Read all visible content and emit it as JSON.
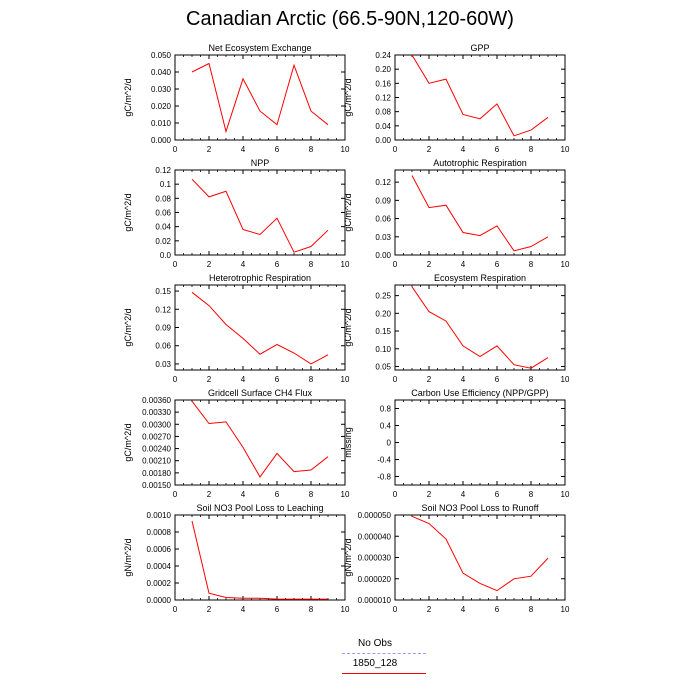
{
  "page": {
    "title": "Canadian Arctic (66.5-90N,120-60W)"
  },
  "legend": {
    "items": [
      {
        "label": "No Obs",
        "color": "#9999ff",
        "style": "dashed"
      },
      {
        "label": "1850_128",
        "color": "#ff0000",
        "style": "solid"
      }
    ]
  },
  "chart_data": [
    {
      "type": "line",
      "title": "Net Ecosystem Exchange",
      "ylabel": "gC/m^2/d",
      "xlim": [
        0,
        10
      ],
      "ylim": [
        0.0,
        0.05
      ],
      "xticks": [
        "0",
        "2",
        "4",
        "6",
        "8",
        "10"
      ],
      "yticks": [
        "0.000",
        "0.010",
        "0.020",
        "0.030",
        "0.040",
        "0.050"
      ],
      "x": [
        1,
        2,
        3,
        4,
        5,
        6,
        7,
        8,
        9
      ],
      "series": [
        {
          "name": "1850_128",
          "color": "#ff0000",
          "values": [
            0.04,
            0.045,
            0.005,
            0.036,
            0.017,
            0.009,
            0.044,
            0.017,
            0.009
          ]
        }
      ]
    },
    {
      "type": "line",
      "title": "GPP",
      "ylabel": "gC/m^2/d",
      "xlim": [
        0,
        10
      ],
      "ylim": [
        0.0,
        0.24
      ],
      "xticks": [
        "0",
        "2",
        "4",
        "6",
        "8",
        "10"
      ],
      "yticks": [
        "0.00",
        "0.04",
        "0.08",
        "0.12",
        "0.16",
        "0.20",
        "0.24"
      ],
      "x": [
        1,
        2,
        3,
        4,
        5,
        6,
        7,
        8,
        9
      ],
      "series": [
        {
          "name": "1850_128",
          "color": "#ff0000",
          "values": [
            0.24,
            0.16,
            0.172,
            0.072,
            0.06,
            0.102,
            0.012,
            0.028,
            0.064
          ]
        }
      ]
    },
    {
      "type": "line",
      "title": "NPP",
      "ylabel": "gC/m^2/d",
      "xlim": [
        0,
        10
      ],
      "ylim": [
        0.0,
        0.12
      ],
      "xticks": [
        "0",
        "2",
        "4",
        "6",
        "8",
        "10"
      ],
      "yticks": [
        "0.0",
        "0.02",
        "0.04",
        "0.06",
        "0.08",
        "0.1",
        "0.12"
      ],
      "x": [
        1,
        2,
        3,
        4,
        5,
        6,
        7,
        8,
        9
      ],
      "series": [
        {
          "name": "1850_128",
          "color": "#ff0000",
          "values": [
            0.107,
            0.082,
            0.09,
            0.036,
            0.029,
            0.052,
            0.004,
            0.012,
            0.035
          ]
        }
      ]
    },
    {
      "type": "line",
      "title": "Autotrophic Respiration",
      "ylabel": "gC/m^2/d",
      "xlim": [
        0,
        10
      ],
      "ylim": [
        0.0,
        0.14
      ],
      "xticks": [
        "0",
        "2",
        "4",
        "6",
        "8",
        "10"
      ],
      "yticks": [
        "0.00",
        "0.03",
        "0.06",
        "0.09",
        "0.12"
      ],
      "ytick_values": [
        0.0,
        0.03,
        0.06,
        0.09,
        0.12
      ],
      "x": [
        1,
        2,
        3,
        4,
        5,
        6,
        7,
        8,
        9
      ],
      "series": [
        {
          "name": "1850_128",
          "color": "#ff0000",
          "values": [
            0.131,
            0.078,
            0.082,
            0.037,
            0.032,
            0.048,
            0.007,
            0.014,
            0.03
          ]
        }
      ]
    },
    {
      "type": "line",
      "title": "Heterotrophic Respiration",
      "ylabel": "gC/m^2/d",
      "xlim": [
        0,
        10
      ],
      "ylim": [
        0.02,
        0.16
      ],
      "xticks": [
        "0",
        "2",
        "4",
        "6",
        "8",
        "10"
      ],
      "yticks": [
        "0.03",
        "0.06",
        "0.09",
        "0.12",
        "0.15"
      ],
      "ytick_values": [
        0.03,
        0.06,
        0.09,
        0.12,
        0.15
      ],
      "x": [
        1,
        2,
        3,
        4,
        5,
        6,
        7,
        8,
        9
      ],
      "series": [
        {
          "name": "1850_128",
          "color": "#ff0000",
          "values": [
            0.148,
            0.126,
            0.095,
            0.072,
            0.046,
            0.062,
            0.048,
            0.03,
            0.045
          ]
        }
      ]
    },
    {
      "type": "line",
      "title": "Ecosystem Respiration",
      "ylabel": "gC/m^2/d",
      "xlim": [
        0,
        10
      ],
      "ylim": [
        0.04,
        0.28
      ],
      "xticks": [
        "0",
        "2",
        "4",
        "6",
        "8",
        "10"
      ],
      "yticks": [
        "0.05",
        "0.10",
        "0.15",
        "0.20",
        "0.25"
      ],
      "ytick_values": [
        0.05,
        0.1,
        0.15,
        0.2,
        0.25
      ],
      "x": [
        1,
        2,
        3,
        4,
        5,
        6,
        7,
        8,
        9
      ],
      "series": [
        {
          "name": "1850_128",
          "color": "#ff0000",
          "values": [
            0.275,
            0.205,
            0.178,
            0.108,
            0.078,
            0.108,
            0.055,
            0.045,
            0.075
          ]
        }
      ]
    },
    {
      "type": "line",
      "title": "Gridcell Surface CH4 Flux",
      "ylabel": "gC/m^2/d",
      "xlim": [
        0,
        10
      ],
      "ylim": [
        0.0015,
        0.0036
      ],
      "xticks": [
        "0",
        "2",
        "4",
        "6",
        "8",
        "10"
      ],
      "yticks": [
        "0.00150",
        "0.00180",
        "0.00210",
        "0.00240",
        "0.00270",
        "0.00300",
        "0.00330",
        "0.00360"
      ],
      "x": [
        1,
        2,
        3,
        4,
        5,
        6,
        7,
        8,
        9
      ],
      "series": [
        {
          "name": "1850_128",
          "color": "#ff0000",
          "values": [
            0.00357,
            0.00302,
            0.00306,
            0.00243,
            0.0017,
            0.00228,
            0.00183,
            0.00187,
            0.0022
          ]
        }
      ]
    },
    {
      "type": "line",
      "title": "Carbon Use Efficiency (NPP/GPP)",
      "ylabel": "missing",
      "xlim": [
        0,
        10
      ],
      "ylim": [
        -1.0,
        1.0
      ],
      "xticks": [
        "0",
        "2",
        "4",
        "6",
        "8",
        "10"
      ],
      "yticks": [
        "-0.8",
        "-0.4",
        "0",
        "0.4",
        "0.8"
      ],
      "ytick_values": [
        -0.8,
        -0.4,
        0,
        0.4,
        0.8
      ],
      "x": [],
      "series": []
    },
    {
      "type": "line",
      "title": "Soil NO3 Pool Loss to Leaching",
      "ylabel": "gN/m^2/d",
      "xlim": [
        0,
        10
      ],
      "ylim": [
        0.0,
        0.001
      ],
      "xticks": [
        "0",
        "2",
        "4",
        "6",
        "8",
        "10"
      ],
      "yticks": [
        "0.0000",
        "0.0002",
        "0.0004",
        "0.0006",
        "0.0008",
        "0.0010"
      ],
      "x": [
        1,
        2,
        3,
        4,
        5,
        6,
        7,
        8,
        9
      ],
      "series": [
        {
          "name": "1850_128",
          "color": "#ff0000",
          "values": [
            0.00093,
            8e-05,
            3e-05,
            2e-05,
            2e-05,
            1e-05,
            1e-05,
            1e-05,
            1e-05
          ]
        }
      ]
    },
    {
      "type": "line",
      "title": "Soil NO3 Pool Loss to Runoff",
      "ylabel": "gN/m^2/d",
      "xlim": [
        0,
        10
      ],
      "ylim": [
        1e-05,
        5e-05
      ],
      "xticks": [
        "0",
        "2",
        "4",
        "6",
        "8",
        "10"
      ],
      "yticks": [
        "0.000010",
        "0.000020",
        "0.000030",
        "0.000040",
        "0.000050"
      ],
      "x": [
        1,
        2,
        3,
        4,
        5,
        6,
        7,
        8,
        9
      ],
      "series": [
        {
          "name": "1850_128",
          "color": "#ff0000",
          "values": [
            4.94e-05,
            4.6e-05,
            3.87e-05,
            2.26e-05,
            1.78e-05,
            1.44e-05,
            2e-05,
            2.12e-05,
            2.97e-05
          ]
        }
      ]
    }
  ]
}
